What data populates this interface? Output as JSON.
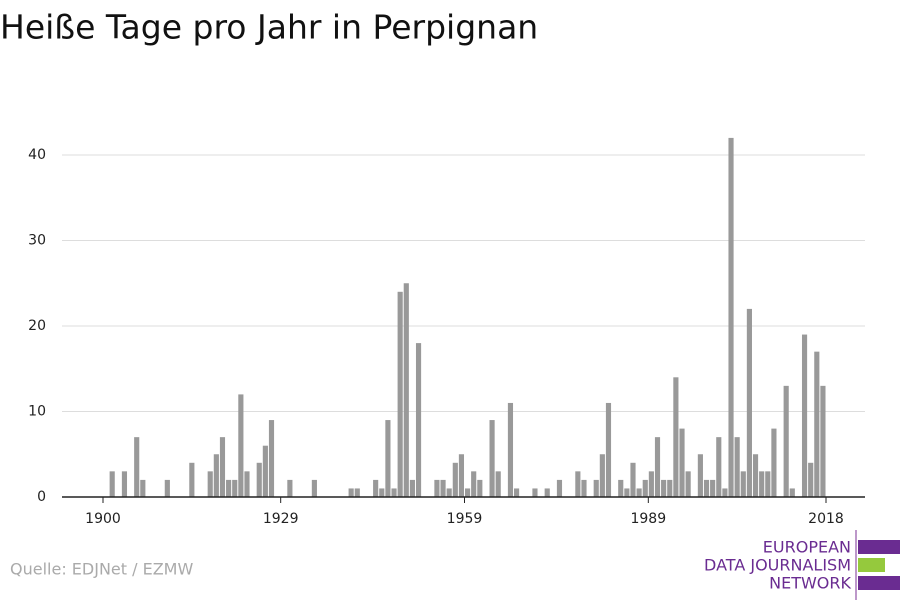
{
  "chart_data": {
    "type": "bar",
    "title": "Heiße Tage pro Jahr in Perpignan",
    "x": [
      1900,
      1901,
      1902,
      1903,
      1904,
      1905,
      1906,
      1907,
      1908,
      1909,
      1910,
      1911,
      1912,
      1913,
      1914,
      1915,
      1916,
      1917,
      1918,
      1919,
      1920,
      1921,
      1922,
      1923,
      1924,
      1925,
      1926,
      1927,
      1928,
      1929,
      1930,
      1931,
      1932,
      1933,
      1934,
      1935,
      1936,
      1937,
      1938,
      1939,
      1940,
      1941,
      1942,
      1943,
      1944,
      1945,
      1946,
      1947,
      1948,
      1949,
      1950,
      1951,
      1952,
      1953,
      1954,
      1955,
      1956,
      1957,
      1958,
      1959,
      1960,
      1961,
      1962,
      1963,
      1964,
      1965,
      1966,
      1967,
      1968,
      1969,
      1970,
      1971,
      1972,
      1973,
      1974,
      1975,
      1976,
      1977,
      1978,
      1979,
      1980,
      1981,
      1982,
      1983,
      1984,
      1985,
      1986,
      1987,
      1988,
      1989,
      1990,
      1991,
      1992,
      1993,
      1994,
      1995,
      1996,
      1997,
      1998,
      1999,
      2000,
      2001,
      2002,
      2003,
      2004,
      2005,
      2006,
      2007,
      2008,
      2009,
      2010,
      2011,
      2012,
      2013,
      2014,
      2015,
      2016,
      2017
    ],
    "values": [
      0,
      3,
      0,
      3,
      0,
      7,
      2,
      0,
      0,
      0,
      2,
      0,
      0,
      0,
      4,
      0,
      0,
      3,
      5,
      7,
      2,
      2,
      12,
      3,
      0,
      4,
      6,
      9,
      0,
      0,
      2,
      0,
      0,
      0,
      2,
      0,
      0,
      0,
      0,
      0,
      1,
      1,
      0,
      0,
      2,
      1,
      9,
      1,
      24,
      25,
      2,
      18,
      0,
      0,
      2,
      2,
      1,
      4,
      5,
      1,
      3,
      2,
      0,
      9,
      3,
      0,
      11,
      1,
      0,
      0,
      1,
      0,
      1,
      0,
      2,
      0,
      0,
      3,
      2,
      0,
      2,
      5,
      11,
      0,
      2,
      1,
      4,
      1,
      2,
      3,
      7,
      2,
      2,
      14,
      8,
      3,
      0,
      5,
      2,
      2,
      7,
      1,
      42,
      7,
      3,
      22,
      5,
      3,
      3,
      8,
      0,
      13,
      1,
      0,
      19,
      4,
      17,
      13
    ],
    "color": "#999999",
    "xlim": [
      1900,
      2018
    ],
    "xticks": [
      1900,
      1929,
      1959,
      1989,
      2018
    ],
    "ylim": [
      0,
      40
    ],
    "yticks": [
      0,
      10,
      20,
      30,
      40
    ],
    "grid": true
  },
  "source": "Quelle: EDJNet / EZMW",
  "logo": [
    "EUROPEAN",
    "DATA JOURNALISM",
    "NETWORK"
  ]
}
